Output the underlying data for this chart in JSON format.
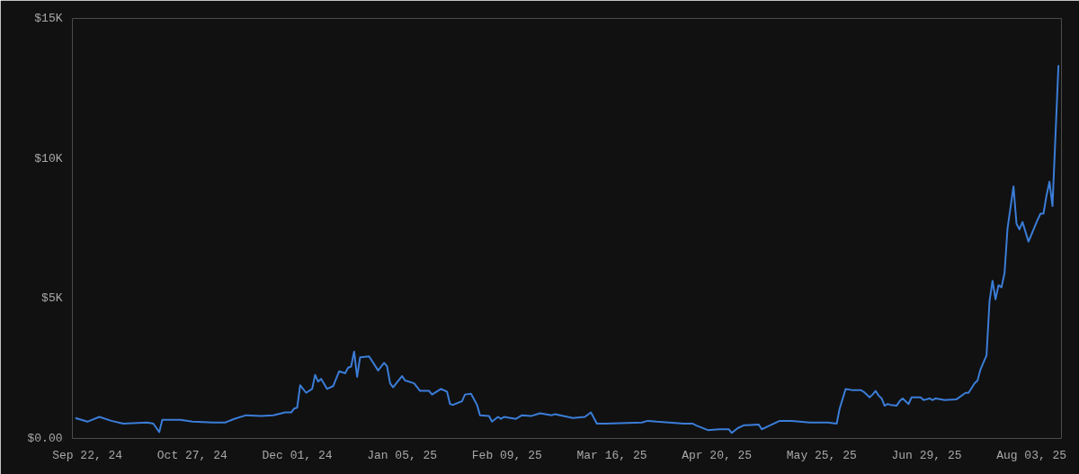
{
  "chart_data": {
    "type": "line",
    "x": [
      "2024-09-18",
      "2024-09-22",
      "2024-09-26",
      "2024-09-30",
      "2024-10-04",
      "2024-10-12",
      "2024-10-14",
      "2024-10-16",
      "2024-10-17",
      "2024-10-23",
      "2024-10-27",
      "2024-11-03",
      "2024-11-07",
      "2024-11-10",
      "2024-11-14",
      "2024-11-19",
      "2024-11-23",
      "2024-11-27",
      "2024-11-29",
      "2024-11-30",
      "2024-12-01",
      "2024-12-02",
      "2024-12-04",
      "2024-12-06",
      "2024-12-07",
      "2024-12-08",
      "2024-12-09",
      "2024-12-11",
      "2024-12-13",
      "2024-12-15",
      "2024-12-17",
      "2024-12-18",
      "2024-12-19",
      "2024-12-20",
      "2024-12-21",
      "2024-12-22",
      "2024-12-25",
      "2024-12-28",
      "2024-12-30",
      "2024-12-31",
      "2025-01-01",
      "2025-01-02",
      "2025-01-05",
      "2025-01-06",
      "2025-01-09",
      "2025-01-11",
      "2025-01-14",
      "2025-01-15",
      "2025-01-18",
      "2025-01-20",
      "2025-01-21",
      "2025-01-22",
      "2025-01-25",
      "2025-01-26",
      "2025-01-28",
      "2025-01-30",
      "2025-01-31",
      "2025-02-03",
      "2025-02-04",
      "2025-02-06",
      "2025-02-07",
      "2025-02-08",
      "2025-02-12",
      "2025-02-14",
      "2025-02-17",
      "2025-02-20",
      "2025-02-24",
      "2025-02-25",
      "2025-03-03",
      "2025-03-07",
      "2025-03-09",
      "2025-03-11",
      "2025-03-14",
      "2025-03-26",
      "2025-03-28",
      "2025-03-31",
      "2025-04-04",
      "2025-04-09",
      "2025-04-12",
      "2025-04-13",
      "2025-04-17",
      "2025-04-21",
      "2025-04-24",
      "2025-04-25",
      "2025-04-27",
      "2025-04-29",
      "2025-04-30",
      "2025-05-04",
      "2025-05-05",
      "2025-05-07",
      "2025-05-11",
      "2025-05-15",
      "2025-05-21",
      "2025-05-27",
      "2025-05-30",
      "2025-05-31",
      "2025-06-02",
      "2025-06-04",
      "2025-06-07",
      "2025-06-08",
      "2025-06-10",
      "2025-06-11",
      "2025-06-12",
      "2025-06-13",
      "2025-06-14",
      "2025-06-15",
      "2025-06-16",
      "2025-06-17",
      "2025-06-19",
      "2025-06-20",
      "2025-06-21",
      "2025-06-23",
      "2025-06-24",
      "2025-06-27",
      "2025-06-28",
      "2025-06-30",
      "2025-07-01",
      "2025-07-02",
      "2025-07-05",
      "2025-07-09",
      "2025-07-12",
      "2025-07-13",
      "2025-07-15",
      "2025-07-16",
      "2025-07-17",
      "2025-07-19",
      "2025-07-20",
      "2025-07-21",
      "2025-07-22",
      "2025-07-23",
      "2025-07-24",
      "2025-07-25",
      "2025-07-26",
      "2025-07-28",
      "2025-07-29",
      "2025-07-30",
      "2025-07-31",
      "2025-08-02",
      "2025-08-05",
      "2025-08-06",
      "2025-08-07",
      "2025-08-08",
      "2025-08-09",
      "2025-08-10",
      "2025-08-12"
    ],
    "series": [
      {
        "color": "#3b7dd8",
        "values": [
          730,
          600,
          770,
          630,
          530,
          570,
          530,
          230,
          670,
          670,
          600,
          570,
          570,
          700,
          830,
          800,
          830,
          930,
          930,
          1070,
          1100,
          1900,
          1630,
          1770,
          2270,
          2030,
          2130,
          1770,
          1870,
          2400,
          2330,
          2530,
          2570,
          3100,
          2200,
          2900,
          2930,
          2430,
          2700,
          2570,
          1970,
          1830,
          2230,
          2070,
          1970,
          1700,
          1700,
          1570,
          1770,
          1670,
          1230,
          1200,
          1330,
          1570,
          1600,
          1200,
          830,
          800,
          600,
          770,
          700,
          770,
          700,
          830,
          800,
          900,
          830,
          870,
          730,
          770,
          930,
          530,
          530,
          570,
          630,
          600,
          570,
          530,
          530,
          470,
          300,
          330,
          330,
          200,
          370,
          470,
          470,
          500,
          330,
          430,
          630,
          630,
          570,
          570,
          530,
          1070,
          1770,
          1730,
          1730,
          1670,
          1470,
          1570,
          1700,
          1530,
          1430,
          1170,
          1230,
          1200,
          1170,
          1330,
          1430,
          1230,
          1470,
          1470,
          1370,
          1430,
          1370,
          1430,
          1370,
          1400,
          1630,
          1630,
          1970,
          2070,
          2470,
          2970,
          4900,
          5630,
          4970,
          5470,
          5400,
          5900,
          7500,
          9000,
          7670,
          7470,
          7730,
          7030,
          7800,
          8030,
          8030,
          8670,
          9170,
          8300,
          13330
        ]
      }
    ],
    "xlim": [
      "2024-09-17",
      "2025-08-13"
    ],
    "xticks": [
      {
        "value": "2024-09-22",
        "label": "Sep 22, 24"
      },
      {
        "value": "2024-10-27",
        "label": "Oct 27, 24"
      },
      {
        "value": "2024-12-01",
        "label": "Dec 01, 24"
      },
      {
        "value": "2025-01-05",
        "label": "Jan 05, 25"
      },
      {
        "value": "2025-02-09",
        "label": "Feb 09, 25"
      },
      {
        "value": "2025-03-16",
        "label": "Mar 16, 25"
      },
      {
        "value": "2025-04-20",
        "label": "Apr 20, 25"
      },
      {
        "value": "2025-05-25",
        "label": "May 25, 25"
      },
      {
        "value": "2025-06-29",
        "label": "Jun 29, 25"
      },
      {
        "value": "2025-08-03",
        "label": "Aug 03, 25"
      }
    ],
    "ylim": [
      0,
      15000
    ],
    "yticks": [
      {
        "value": 0,
        "label": "$0.00"
      },
      {
        "value": 5000,
        "label": "$5K"
      },
      {
        "value": 10000,
        "label": "$10K"
      },
      {
        "value": 15000,
        "label": "$15K"
      }
    ],
    "line_style": "solid"
  }
}
